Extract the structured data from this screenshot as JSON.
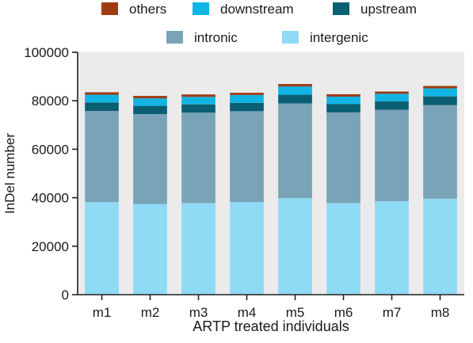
{
  "chart_data": {
    "type": "bar",
    "stacked": true,
    "categories": [
      "m1",
      "m2",
      "m3",
      "m4",
      "m5",
      "m6",
      "m7",
      "m8"
    ],
    "series": [
      {
        "name": "intergenic",
        "color": "#8fdaf5",
        "values": [
          38200,
          37400,
          37800,
          38200,
          39800,
          37800,
          38600,
          39600
        ]
      },
      {
        "name": "intronic",
        "color": "#79a3b7",
        "values": [
          37600,
          37100,
          37300,
          37500,
          39100,
          37400,
          37700,
          38600
        ]
      },
      {
        "name": "upstream",
        "color": "#0b5f73",
        "values": [
          3500,
          3400,
          3400,
          3400,
          3600,
          3400,
          3500,
          3600
        ]
      },
      {
        "name": "downstream",
        "color": "#11b4e3",
        "values": [
          3200,
          3100,
          3100,
          3300,
          3400,
          3100,
          3100,
          3300
        ]
      },
      {
        "name": "others",
        "color": "#9e3a12",
        "values": [
          1000,
          1000,
          1000,
          900,
          1000,
          1000,
          900,
          1000
        ]
      }
    ],
    "legend_order": [
      "others",
      "downstream",
      "upstream",
      "intronic",
      "intergenic"
    ],
    "legend_position": "top",
    "xlabel": "ARTP treated individuals",
    "ylabel": "InDel number",
    "ylim": [
      0,
      100000
    ],
    "yticks": [
      "0",
      "20000",
      "40000",
      "60000",
      "80000",
      "100000"
    ],
    "plot_background": "#ebebeb",
    "grid": false
  }
}
